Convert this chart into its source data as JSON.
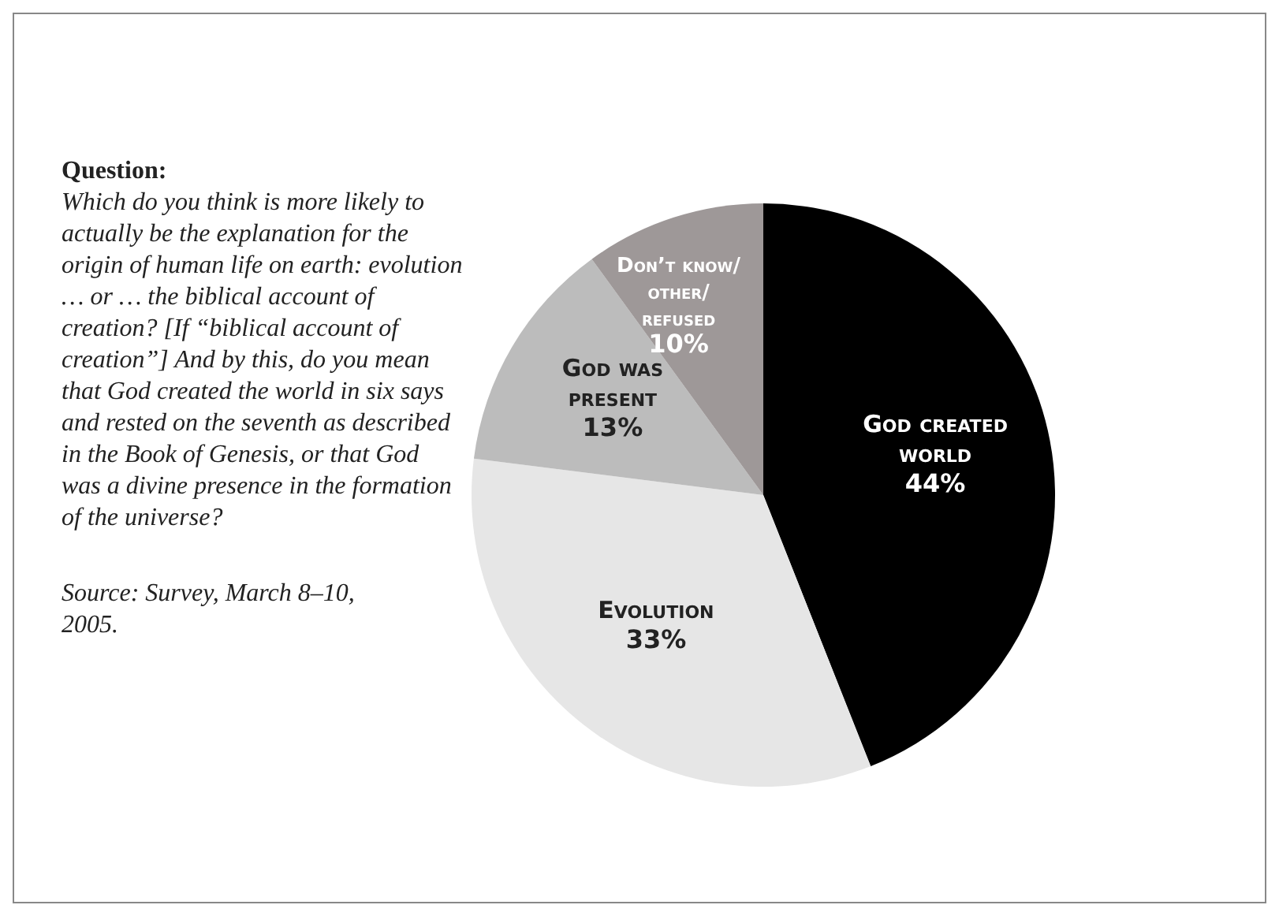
{
  "chart_data": {
    "type": "pie",
    "title": "Question:",
    "annotations": [
      "Which do you think is more likely to actually be the explanation for the origin of human life on earth: evolution … or … the biblical account of creation? [If “biblical account of creation”] And by this, do you  mean that God created the world in six says and rested on the seventh as described in the Book of Genesis, or that God was a divine presence in the formation of the universe?",
      "Source: Survey, March 8–10, 2005."
    ],
    "categories": [
      "God created world",
      "Evolution",
      "God was present",
      "Don’t know/ other/ refused"
    ],
    "values": [
      44,
      33,
      13,
      10
    ],
    "colors": [
      "#000000",
      "#e6e6e6",
      "#bcbcbc",
      "#9e9898"
    ],
    "value_labels": [
      "44%",
      "33%",
      "13%",
      "10%"
    ]
  }
}
